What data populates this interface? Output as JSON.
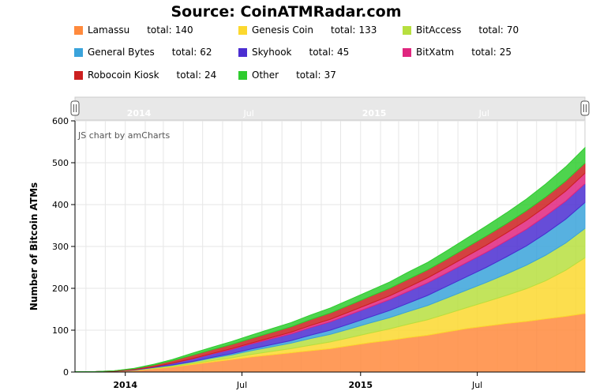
{
  "source": "Source: CoinATMRadar.com",
  "credit": "JS chart by amCharts",
  "total_prefix": "total:",
  "chart_data": {
    "type": "area",
    "stacked": true,
    "ylabel": "Number of Bitcoin ATMs",
    "ylim": [
      0,
      600
    ],
    "yticks": [
      0,
      100,
      200,
      300,
      400,
      500,
      600
    ],
    "x_range": [
      "2013-10-15",
      "2015-12-15"
    ],
    "xticks": [
      {
        "label": "2014",
        "date": "2014-01-01",
        "major": true
      },
      {
        "label": "Jul",
        "date": "2014-07-01",
        "major": false
      },
      {
        "label": "2015",
        "date": "2015-01-01",
        "major": true
      },
      {
        "label": "Jul",
        "date": "2015-07-01",
        "major": false
      }
    ],
    "grid": true,
    "legend_placement": "top",
    "x": [
      "2013-10-15",
      "2013-11-15",
      "2013-12-15",
      "2014-01-15",
      "2014-02-15",
      "2014-03-15",
      "2014-04-15",
      "2014-05-15",
      "2014-06-15",
      "2014-07-15",
      "2014-08-15",
      "2014-09-15",
      "2014-10-15",
      "2014-11-15",
      "2014-12-15",
      "2015-01-15",
      "2015-02-15",
      "2015-03-15",
      "2015-04-15",
      "2015-05-15",
      "2015-06-15",
      "2015-07-15",
      "2015-08-15",
      "2015-09-15",
      "2015-10-15",
      "2015-11-15",
      "2015-12-15"
    ],
    "series": [
      {
        "name": "Lamassu",
        "total": 140,
        "color": "#ff8a3d",
        "values": [
          1,
          1,
          2,
          4,
          8,
          12,
          18,
          24,
          30,
          36,
          41,
          46,
          51,
          56,
          63,
          70,
          76,
          82,
          88,
          96,
          104,
          110,
          116,
          121,
          127,
          133,
          140
        ]
      },
      {
        "name": "Genesis Coin",
        "total": 133,
        "color": "#fcd82f",
        "values": [
          0,
          0,
          0,
          0,
          1,
          1,
          2,
          3,
          4,
          6,
          8,
          10,
          13,
          16,
          19,
          23,
          27,
          32,
          37,
          43,
          50,
          58,
          67,
          78,
          91,
          110,
          133
        ]
      },
      {
        "name": "BitAccess",
        "total": 70,
        "color": "#b7df3f",
        "values": [
          0,
          0,
          0,
          1,
          2,
          3,
          4,
          6,
          7,
          9,
          11,
          13,
          16,
          18,
          21,
          24,
          27,
          30,
          34,
          38,
          42,
          46,
          51,
          56,
          61,
          65,
          70
        ]
      },
      {
        "name": "General Bytes",
        "total": 62,
        "color": "#3aa3db",
        "values": [
          0,
          0,
          0,
          0,
          0,
          1,
          1,
          2,
          3,
          4,
          5,
          6,
          8,
          10,
          12,
          14,
          17,
          20,
          24,
          28,
          32,
          36,
          41,
          46,
          52,
          57,
          62
        ]
      },
      {
        "name": "Skyhook",
        "total": 45,
        "color": "#4b2ed1",
        "values": [
          0,
          0,
          0,
          1,
          2,
          4,
          6,
          8,
          10,
          12,
          14,
          16,
          18,
          20,
          22,
          24,
          26,
          28,
          30,
          32,
          34,
          36,
          38,
          40,
          42,
          43,
          45
        ]
      },
      {
        "name": "BitXatm",
        "total": 25,
        "color": "#e0267f",
        "values": [
          0,
          0,
          0,
          0,
          0,
          0,
          1,
          1,
          2,
          2,
          3,
          4,
          5,
          6,
          7,
          8,
          9,
          10,
          12,
          13,
          15,
          17,
          19,
          21,
          22,
          24,
          25
        ]
      },
      {
        "name": "Robocoin Kiosk",
        "total": 24,
        "color": "#cc2020",
        "values": [
          0,
          0,
          1,
          2,
          4,
          6,
          8,
          9,
          10,
          11,
          12,
          13,
          14,
          15,
          16,
          17,
          18,
          19,
          19,
          20,
          21,
          22,
          22,
          23,
          23,
          24,
          24
        ]
      },
      {
        "name": "Other",
        "total": 37,
        "color": "#2fcc2f",
        "values": [
          0,
          0,
          0,
          1,
          2,
          3,
          5,
          6,
          7,
          8,
          9,
          10,
          11,
          12,
          13,
          14,
          15,
          17,
          18,
          20,
          22,
          24,
          26,
          28,
          31,
          34,
          37
        ]
      }
    ]
  }
}
